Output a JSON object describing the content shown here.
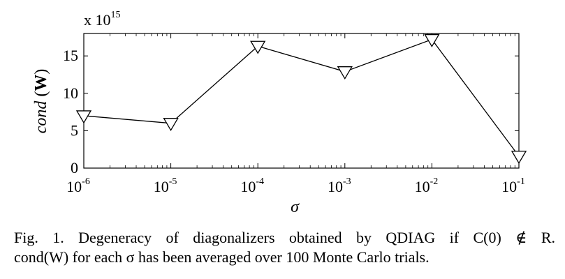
{
  "chart_data": {
    "type": "line",
    "x": [
      -6,
      -5,
      -4,
      -3,
      -2,
      -1
    ],
    "x_tick_labels": [
      {
        "base": "10",
        "exp": "-6"
      },
      {
        "base": "10",
        "exp": "-5"
      },
      {
        "base": "10",
        "exp": "-4"
      },
      {
        "base": "10",
        "exp": "-3"
      },
      {
        "base": "10",
        "exp": "-2"
      },
      {
        "base": "10",
        "exp": "-1"
      }
    ],
    "xscale": "log",
    "xlim": [
      -6,
      -1
    ],
    "series": [
      {
        "values": [
          7.0,
          6.0,
          16.3,
          12.9,
          17.2,
          1.6
        ],
        "marker": "down-triangle",
        "color": "#000000"
      }
    ],
    "ylim": [
      0,
      18
    ],
    "y_ticks": [
      0,
      5,
      10,
      15
    ],
    "y_tick_labels": [
      "0",
      "5",
      "10",
      "15"
    ],
    "y_multiplier": {
      "base": "x 10",
      "exp": "15"
    },
    "xlabel": "σ",
    "ylabel": {
      "italic": "cond",
      "bold": "W",
      "open": "(",
      "close": ")"
    },
    "grid": false
  },
  "caption": {
    "line1": "Fig. 1.  Degeneracy of diagonalizers obtained by QDIAG if C(0) ∉ R.",
    "line2": "cond(W) for each σ has been averaged over 100 Monte Carlo trials."
  }
}
